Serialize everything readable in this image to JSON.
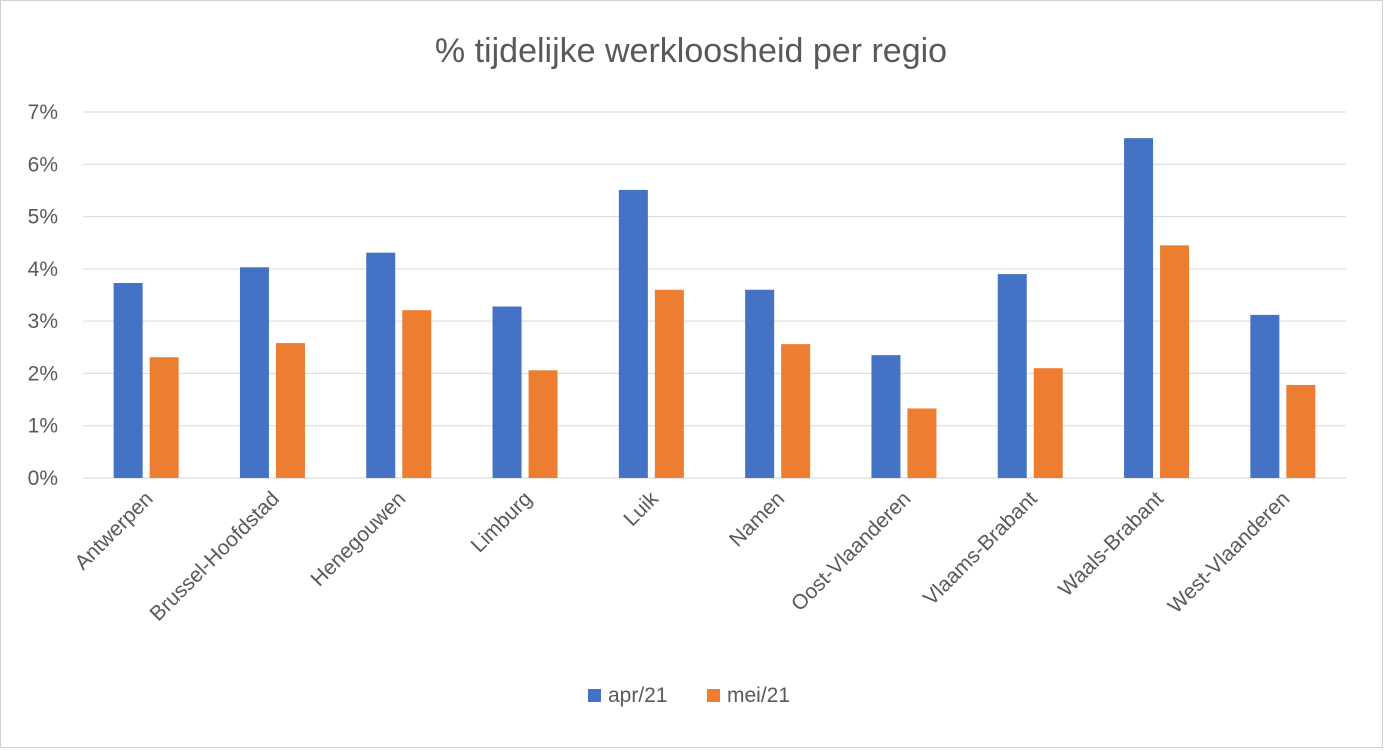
{
  "chart_data": {
    "type": "bar",
    "title": "% tijdelijke werkloosheid per regio",
    "xlabel": "",
    "ylabel": "",
    "ylim": [
      0,
      7
    ],
    "yticks": [
      "0%",
      "1%",
      "2%",
      "3%",
      "4%",
      "5%",
      "6%",
      "7%"
    ],
    "grid": true,
    "legend_position": "bottom",
    "categories": [
      "Antwerpen",
      "Brussel-Hoofdstad",
      "Henegouwen",
      "Limburg",
      "Luik",
      "Namen",
      "Oost-Vlaanderen",
      "Vlaams-Brabant",
      "Waals-Brabant",
      "West-Vlaanderen"
    ],
    "series": [
      {
        "name": "apr/21",
        "color": "#4472C4",
        "values": [
          3.73,
          4.03,
          4.31,
          3.28,
          5.51,
          3.6,
          2.35,
          3.9,
          6.5,
          3.12
        ]
      },
      {
        "name": "mei/21",
        "color": "#ED7D31",
        "values": [
          2.31,
          2.58,
          3.21,
          2.06,
          3.6,
          2.56,
          1.33,
          2.1,
          4.45,
          1.78
        ]
      }
    ]
  }
}
